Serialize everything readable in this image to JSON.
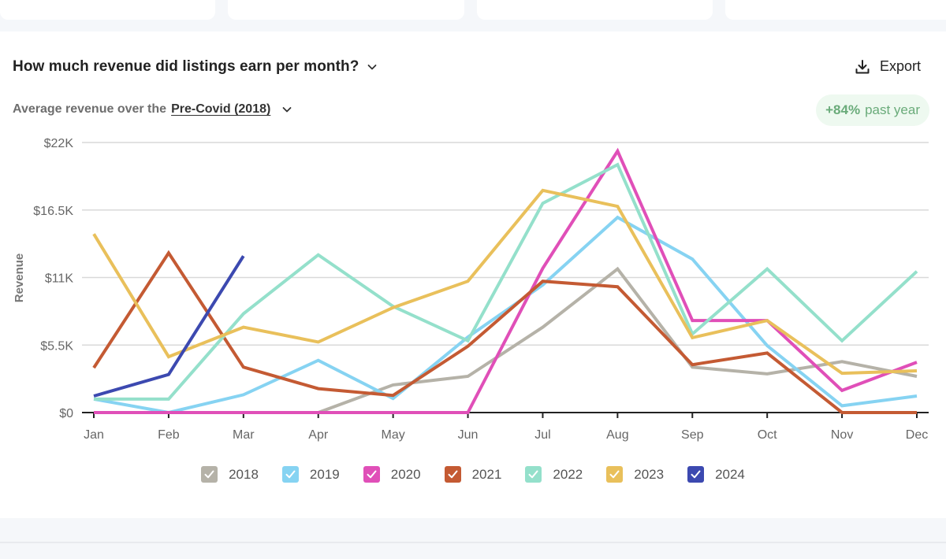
{
  "header": {
    "title": "How much revenue did listings earn per month?",
    "export_label": "Export",
    "subtitle_prefix": "Average revenue over the",
    "period": "Pre-Covid (2018)",
    "badge_value": "+84%",
    "badge_text": "past year"
  },
  "icons": {
    "title_dropdown": "chevron-down-icon",
    "period_dropdown": "chevron-down-icon",
    "export": "download-icon",
    "legend_check": "checkmark-icon"
  },
  "chart_data": {
    "type": "line",
    "title": "How much revenue did listings earn per month?",
    "xlabel": "",
    "ylabel": "Revenue",
    "categories": [
      "Jan",
      "Feb",
      "Mar",
      "Apr",
      "May",
      "Jun",
      "Jul",
      "Aug",
      "Sep",
      "Oct",
      "Nov",
      "Dec"
    ],
    "yticks": [
      0,
      5500,
      11000,
      16500,
      22000
    ],
    "ytick_labels": [
      "$0",
      "$5.5K",
      "$11K",
      "$16.5K",
      "$22K"
    ],
    "ylim": [
      0,
      22000
    ],
    "grid": true,
    "legend_position": "bottom",
    "series": [
      {
        "name": "2018",
        "color": "#b5b2a8",
        "values": [
          0,
          0,
          0,
          0,
          2250,
          2950,
          6950,
          11700,
          3700,
          3150,
          4150,
          2950
        ]
      },
      {
        "name": "2019",
        "color": "#86d3f2",
        "values": [
          1100,
          0,
          1450,
          4250,
          1150,
          6150,
          10400,
          15900,
          12500,
          5450,
          550,
          1350
        ]
      },
      {
        "name": "2020",
        "color": "#e04fb8",
        "values": [
          0,
          0,
          0,
          0,
          0,
          0,
          11750,
          21300,
          7500,
          7500,
          1800,
          4100
        ]
      },
      {
        "name": "2021",
        "color": "#c45a33",
        "values": [
          3650,
          13000,
          3700,
          1950,
          1400,
          5400,
          10700,
          10250,
          3900,
          4850,
          0,
          0
        ]
      },
      {
        "name": "2022",
        "color": "#94e0cb",
        "values": [
          1100,
          1100,
          8050,
          12850,
          8650,
          5850,
          17050,
          20200,
          6400,
          11700,
          5850,
          11500
        ]
      },
      {
        "name": "2023",
        "color": "#e9c05b",
        "values": [
          14550,
          4550,
          6950,
          5750,
          8550,
          10700,
          18100,
          16800,
          6100,
          7500,
          3200,
          3400
        ]
      },
      {
        "name": "2024",
        "color": "#3c49b0",
        "values": [
          1350,
          3100,
          12750,
          null,
          null,
          null,
          null,
          null,
          null,
          null,
          null,
          null
        ]
      }
    ]
  }
}
